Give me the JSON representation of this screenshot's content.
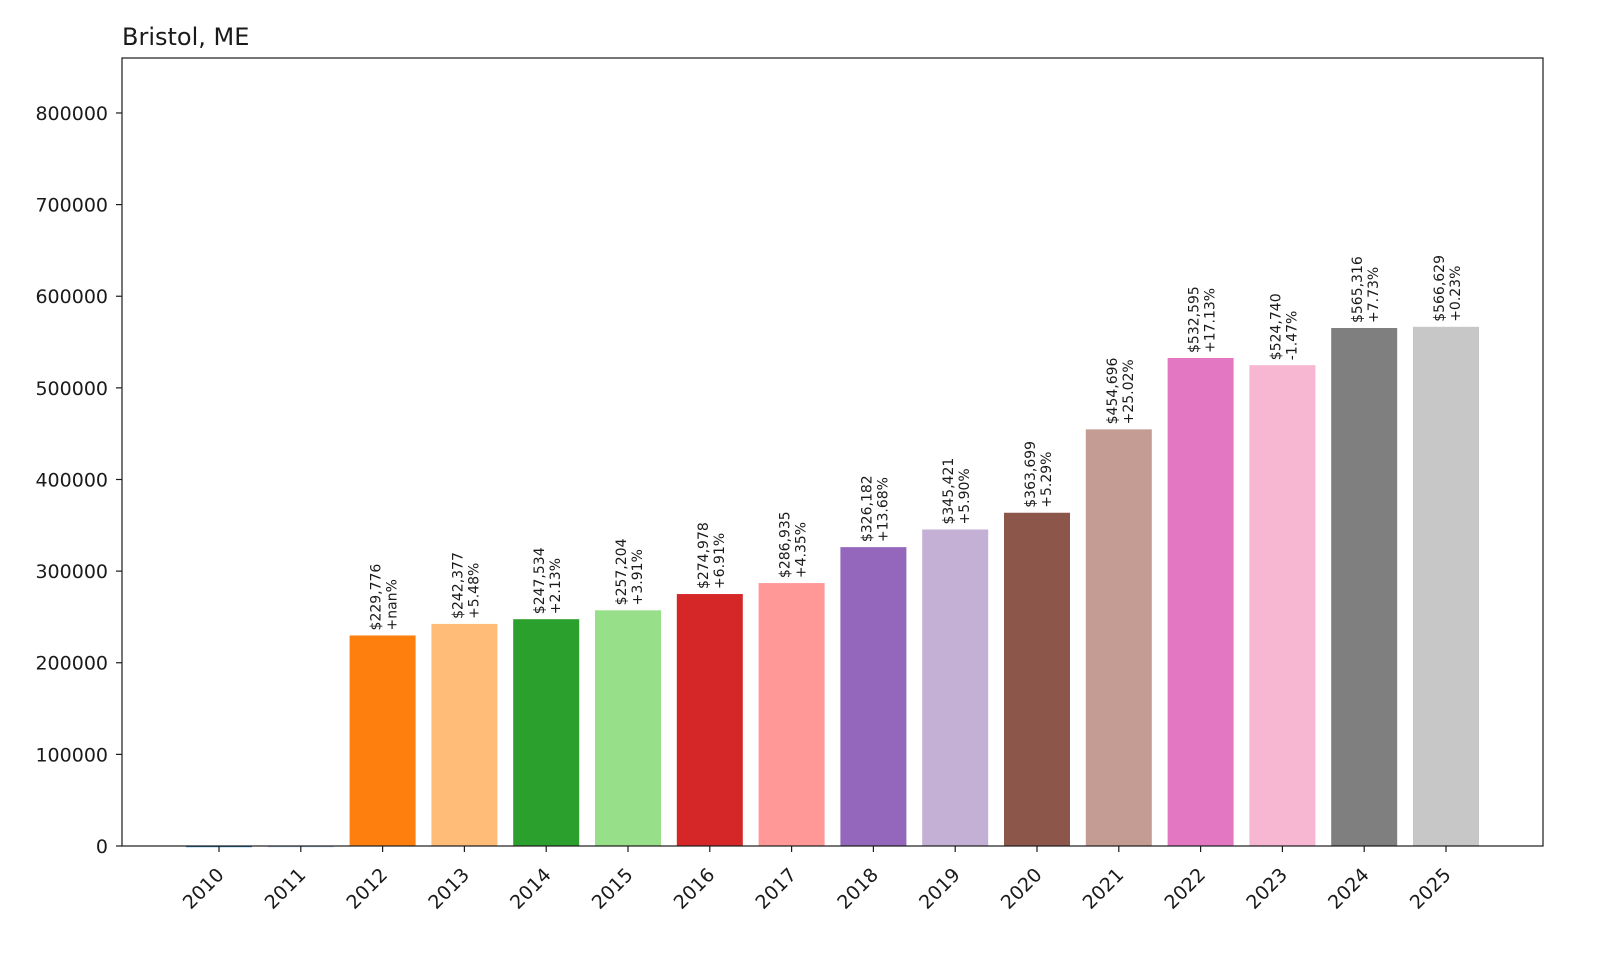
{
  "chart_data": {
    "type": "bar",
    "title": "Bristol, ME",
    "xlabel": "",
    "ylabel": "",
    "ylim": [
      0,
      860000
    ],
    "yticks": [
      0,
      100000,
      200000,
      300000,
      400000,
      500000,
      600000,
      700000,
      800000
    ],
    "categories": [
      "2010",
      "2011",
      "2012",
      "2013",
      "2014",
      "2015",
      "2016",
      "2017",
      "2018",
      "2019",
      "2020",
      "2021",
      "2022",
      "2023",
      "2024",
      "2025"
    ],
    "values": [
      0,
      0,
      229776,
      242377,
      247534,
      257204,
      274978,
      286935,
      326182,
      345421,
      363699,
      454696,
      532595,
      524740,
      565316,
      566629
    ],
    "value_labels": [
      "",
      "",
      "$229,776",
      "$242,377",
      "$247,534",
      "$257,204",
      "$274,978",
      "$286,935",
      "$326,182",
      "$345,421",
      "$363,699",
      "$454,696",
      "$532,595",
      "$524,740",
      "$565,316",
      "$566,629"
    ],
    "change_labels": [
      "",
      "",
      "+nan%",
      "+5.48%",
      "+2.13%",
      "+3.91%",
      "+6.91%",
      "+4.35%",
      "+13.68%",
      "+5.90%",
      "+5.29%",
      "+25.02%",
      "+17.13%",
      "-1.47%",
      "+7.73%",
      "+0.23%"
    ],
    "colors": [
      "#1f77b4",
      "#aec7e8",
      "#ff7f0e",
      "#ffbb78",
      "#2ca02c",
      "#98df8a",
      "#d62728",
      "#ff9896",
      "#9467bd",
      "#c5b0d5",
      "#8c564b",
      "#c49c94",
      "#e377c2",
      "#f7b6d2",
      "#7f7f7f",
      "#c7c7c7"
    ],
    "grid": false,
    "legend": "none"
  }
}
